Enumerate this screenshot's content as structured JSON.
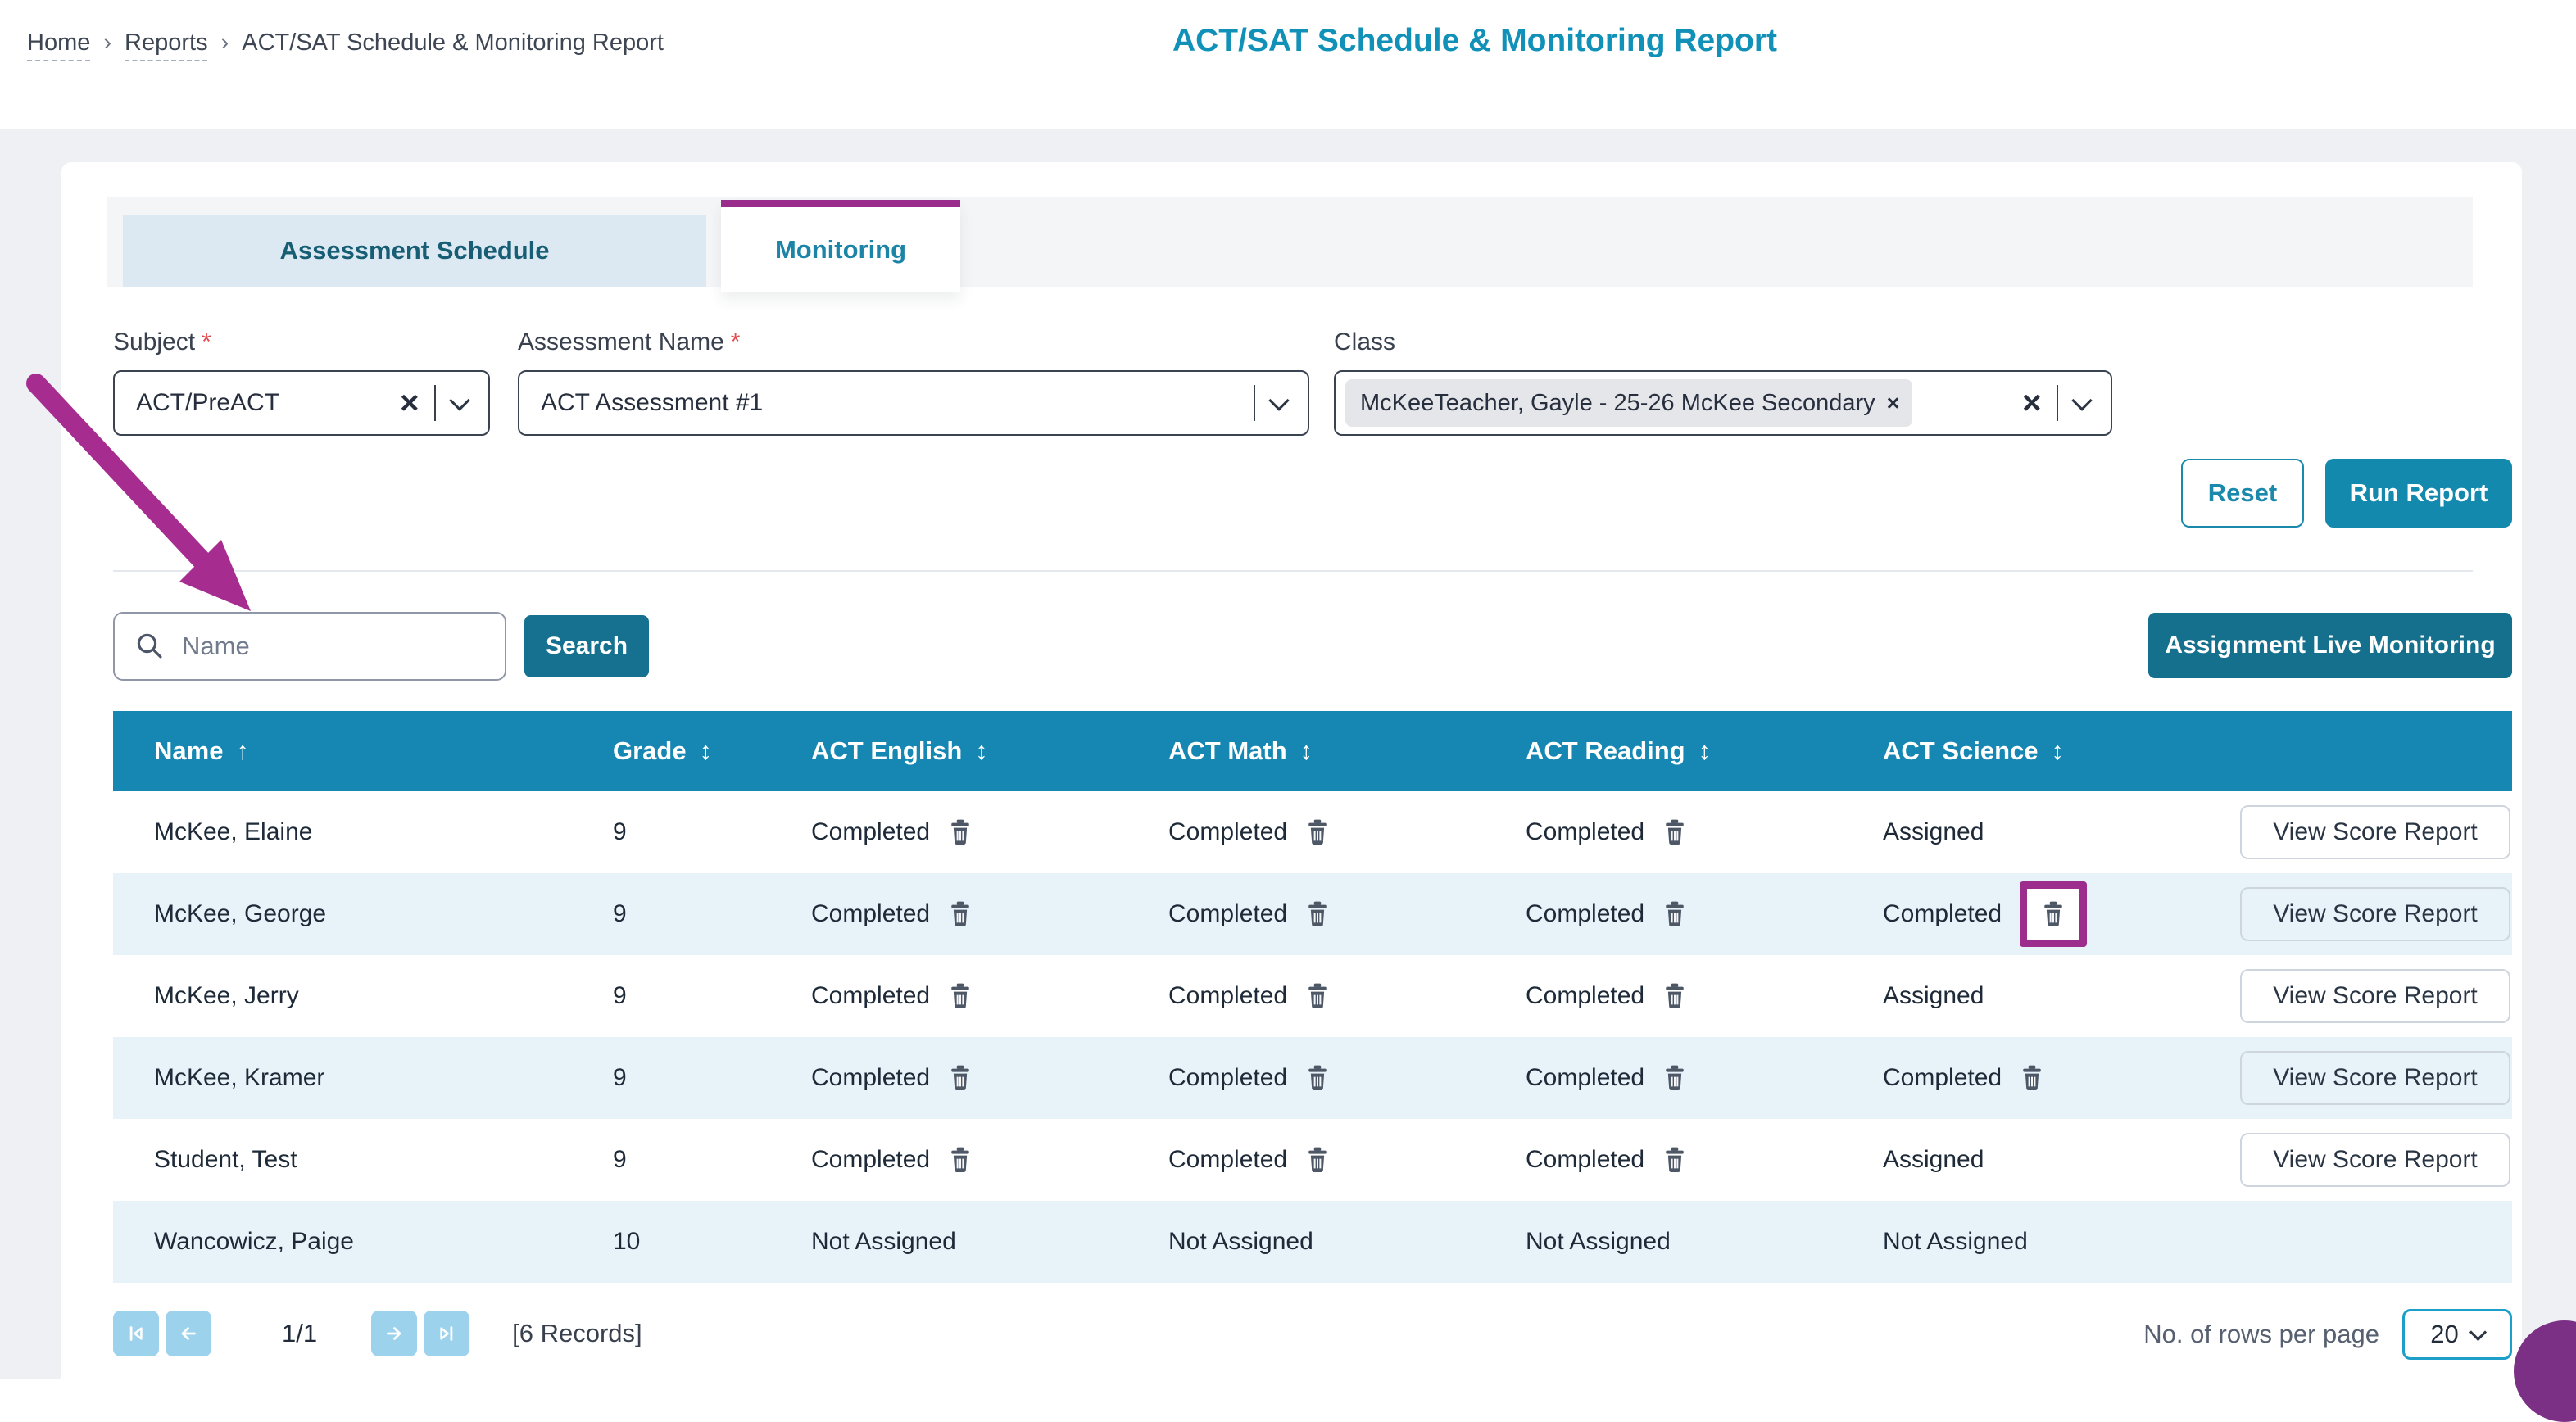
{
  "colors": {
    "teal_primary": "#1489ae",
    "teal_dark": "#15708e",
    "table_header_teal": "#1587b2",
    "title_teal": "#1191b8",
    "tab_active_border_purple": "#9a2c8c",
    "annotation_purple": "#a62c90",
    "row_alt_blue": "#e7f2f9",
    "required_red": "#e5484d"
  },
  "icons": {
    "breadcrumb_separator": "›",
    "clear": "×",
    "chip_remove": "×",
    "sort_asc": "↑",
    "sort_both": "↕",
    "required_marker": "*"
  },
  "breadcrumb": {
    "items": [
      {
        "label": "Home"
      },
      {
        "label": "Reports"
      },
      {
        "label": "ACT/SAT Schedule & Monitoring Report"
      }
    ]
  },
  "header": {
    "title": "ACT/SAT Schedule & Monitoring Report"
  },
  "tabs": [
    {
      "label": "Assessment Schedule",
      "active": false
    },
    {
      "label": "Monitoring",
      "active": true
    }
  ],
  "filters": {
    "subject": {
      "label": "Subject",
      "required": true,
      "value": "ACT/PreACT"
    },
    "assessment_name": {
      "label": "Assessment Name",
      "required": true,
      "value": "ACT Assessment #1"
    },
    "class": {
      "label": "Class",
      "selected_chip": "McKeeTeacher, Gayle - 25-26 McKee Secondary"
    }
  },
  "buttons": {
    "reset": "Reset",
    "run_report": "Run Report",
    "search": "Search",
    "assignment_live_monitoring": "Assignment Live Monitoring"
  },
  "search": {
    "placeholder": "Name"
  },
  "table": {
    "columns": [
      {
        "label": "Name",
        "sort": "asc"
      },
      {
        "label": "Grade",
        "sort": "both"
      },
      {
        "label": "ACT English",
        "sort": "both"
      },
      {
        "label": "ACT Math",
        "sort": "both"
      },
      {
        "label": "ACT Reading",
        "sort": "both"
      },
      {
        "label": "ACT Science",
        "sort": "both"
      },
      {
        "label": "",
        "sort": null
      }
    ],
    "rows": [
      {
        "name": "McKee, Elaine",
        "grade": "9",
        "statuses": [
          {
            "text": "Completed",
            "trash": true
          },
          {
            "text": "Completed",
            "trash": true
          },
          {
            "text": "Completed",
            "trash": true
          },
          {
            "text": "Assigned",
            "trash": false
          }
        ],
        "action": "View Score Report"
      },
      {
        "name": "McKee, George",
        "grade": "9",
        "statuses": [
          {
            "text": "Completed",
            "trash": true
          },
          {
            "text": "Completed",
            "trash": true
          },
          {
            "text": "Completed",
            "trash": true
          },
          {
            "text": "Completed",
            "trash": true,
            "highlight": true
          }
        ],
        "action": "View Score Report"
      },
      {
        "name": "McKee, Jerry",
        "grade": "9",
        "statuses": [
          {
            "text": "Completed",
            "trash": true
          },
          {
            "text": "Completed",
            "trash": true
          },
          {
            "text": "Completed",
            "trash": true
          },
          {
            "text": "Assigned",
            "trash": false
          }
        ],
        "action": "View Score Report"
      },
      {
        "name": "McKee, Kramer",
        "grade": "9",
        "statuses": [
          {
            "text": "Completed",
            "trash": true
          },
          {
            "text": "Completed",
            "trash": true
          },
          {
            "text": "Completed",
            "trash": true
          },
          {
            "text": "Completed",
            "trash": true
          }
        ],
        "action": "View Score Report"
      },
      {
        "name": "Student, Test",
        "grade": "9",
        "statuses": [
          {
            "text": "Completed",
            "trash": true
          },
          {
            "text": "Completed",
            "trash": true
          },
          {
            "text": "Completed",
            "trash": true
          },
          {
            "text": "Assigned",
            "trash": false
          }
        ],
        "action": "View Score Report"
      },
      {
        "name": "Wancowicz, Paige",
        "grade": "10",
        "statuses": [
          {
            "text": "Not Assigned",
            "trash": false
          },
          {
            "text": "Not Assigned",
            "trash": false
          },
          {
            "text": "Not Assigned",
            "trash": false
          },
          {
            "text": "Not Assigned",
            "trash": false
          }
        ],
        "action": null
      }
    ]
  },
  "pagination": {
    "page_indicator": "1/1",
    "records_label": "[6 Records]",
    "rows_per_page_label": "No. of rows per page",
    "rows_per_page_value": "20"
  }
}
